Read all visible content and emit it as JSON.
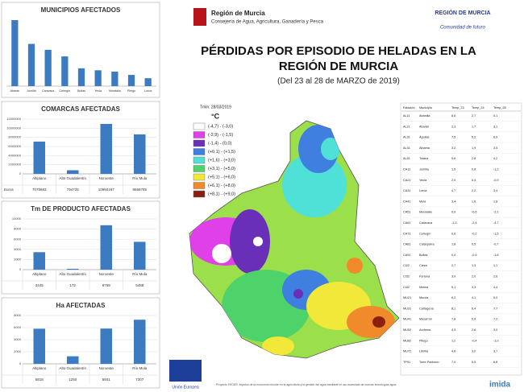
{
  "header": {
    "org": "Región de Murcia",
    "dept": "Consejería de Agua, Agricultura, Ganadería y Pesca",
    "brand": "REGIÓN DE MURCIA",
    "slogan": "Comunidad de futuro",
    "title_line1": "PÉRDIDAS POR EPISODIO DE HELADAS EN LA",
    "title_line2": "REGIÓN DE MURCIA",
    "subtitle": "(Del 23 al 28 de MARZO de 2019)"
  },
  "chart_data": [
    {
      "type": "bar",
      "title": "MUNICIPIOS AFECTADOS",
      "color": "#3c7bbf",
      "categories": [
        "Abarán",
        "Jumilla",
        "Caravaca",
        "Cehegín",
        "Bullas",
        "Yecla",
        "Moratalla",
        "Pliego",
        "Lorca"
      ],
      "values": [
        100,
        64,
        55,
        45,
        27,
        24,
        22,
        17,
        12
      ]
    },
    {
      "type": "bar",
      "title": "COMARCAS AFECTADAS",
      "color": "#3c7bbf",
      "row_label": "Euros",
      "categories": [
        "Altiplano",
        "Alto Guadalentín",
        "Noroeste",
        "Río Mula"
      ],
      "values": [
        7075683,
        794725,
        10950167,
        8658785
      ],
      "ylim": [
        0,
        12000000
      ],
      "yticks": [
        0,
        2000000,
        4000000,
        6000000,
        8000000,
        10000000,
        12000000
      ],
      "grid": true
    },
    {
      "type": "bar",
      "title": "Tm DE PRODUCTO AFECTADAS",
      "color": "#3c7bbf",
      "categories": [
        "Altiplano",
        "Alto Guadalentín",
        "Noroeste",
        "Río Mula"
      ],
      "values": [
        3445,
        172,
        8759,
        5488
      ],
      "ylim": [
        0,
        10000
      ],
      "yticks": [
        0,
        2000,
        4000,
        6000,
        8000,
        10000
      ],
      "grid": true
    },
    {
      "type": "bar",
      "title": "Ha AFECTADAS",
      "color": "#3c7bbf",
      "categories": [
        "Altiplano",
        "Alto Guadalentín",
        "Noroeste",
        "Río Mula"
      ],
      "values": [
        5818,
        1250,
        5841,
        7307
      ],
      "ylim": [
        0,
        8000
      ],
      "yticks": [
        0,
        2000,
        4000,
        6000,
        8000
      ],
      "grid": true
    }
  ],
  "map": {
    "date": "Tmin. 28/03/2019",
    "unit": "°C",
    "legend": [
      {
        "label": "(-4,7) - (-3,0)",
        "color": "#ffffff"
      },
      {
        "label": "(-2,9) - (-1,5)",
        "color": "#e040e8"
      },
      {
        "label": "(-1,4) - (0,0)",
        "color": "#6a2fb8"
      },
      {
        "label": "(+0,1) - (+1,5)",
        "color": "#3f7fe0"
      },
      {
        "label": "(+1,6) - (+3,0)",
        "color": "#4fe0d8"
      },
      {
        "label": "(+3,1) - (+5,0)",
        "color": "#4ed36a"
      },
      {
        "label": "(+5,1) - (+6,0)",
        "color": "#f1e83a"
      },
      {
        "label": "(+6,1) - (+8,0)",
        "color": "#f08a2a"
      },
      {
        "label": "(+8,1) - (+9,0)",
        "color": "#8a2010"
      }
    ]
  },
  "table": {
    "columns": [
      "Estación",
      "Municipio",
      "Temp_23",
      "Temp_24",
      "Temp_28"
    ],
    "rows": [
      [
        "AL11",
        "Abanilla",
        "8,6",
        "2,7",
        "4,1"
      ],
      [
        "AL21",
        "Abarán",
        "2,3",
        "1,7",
        "3,1"
      ],
      [
        "AL31",
        "Águilas",
        "7,5",
        "5,2",
        "6,9"
      ],
      [
        "AL41",
        "Alhama",
        "3,2",
        "1,9",
        "3,5"
      ],
      [
        "AL51",
        "Totana",
        "5,6",
        "2,8",
        "4,2"
      ],
      [
        "CA11",
        "Jumilla",
        "1,5",
        "0,8",
        "-1,2"
      ],
      [
        "CA21",
        "Yecla",
        "2,0",
        "0,4",
        "-0,9"
      ],
      [
        "CA31",
        "Lorca",
        "4,7",
        "2,2",
        "3,4"
      ],
      [
        "CA41",
        "Mula",
        "3,4",
        "1,6",
        "1,8"
      ],
      [
        "CA51",
        "Moratalla",
        "0,9",
        "-0,6",
        "-2,1"
      ],
      [
        "CA61",
        "Caravaca",
        "-1,3",
        "-2,4",
        "-4,7"
      ],
      [
        "CA71",
        "Cehegín",
        "0,6",
        "-0,2",
        "-1,5"
      ],
      [
        "CA81",
        "Calasparra",
        "1,8",
        "0,5",
        "-0,7"
      ],
      [
        "CA91",
        "Bullas",
        "0,4",
        "-0,9",
        "-1,6"
      ],
      [
        "CI22",
        "Cieza",
        "2,7",
        "1,3",
        "1,1"
      ],
      [
        "CI32",
        "Fortuna",
        "3,9",
        "2,0",
        "2,6"
      ],
      [
        "CI42",
        "Molina",
        "5,1",
        "3,3",
        "4,4"
      ],
      [
        "MU21",
        "Murcia",
        "6,2",
        "4,1",
        "5,0"
      ],
      [
        "MU31",
        "Cartagena",
        "8,1",
        "6,4",
        "7,7"
      ],
      [
        "MU41",
        "Mazarrón",
        "7,8",
        "5,9",
        "7,2"
      ],
      [
        "MU52",
        "Archena",
        "4,3",
        "2,6",
        "3,0"
      ],
      [
        "MU62",
        "Pliego",
        "1,2",
        "-0,4",
        "-1,0"
      ],
      [
        "MU72",
        "Librilla",
        "4,8",
        "3,0",
        "3,7"
      ],
      [
        "TP91",
        "Torre Pacheco",
        "7,0",
        "5,5",
        "6,8"
      ]
    ]
  },
  "footer": {
    "eu": "Unión Europea",
    "note": "Proyecto FEDER: impulso de la economía circular en la agricultura y la gestión del agua mediante el uso avanzado de nuevas tecnologías agua",
    "brand": "imida"
  }
}
